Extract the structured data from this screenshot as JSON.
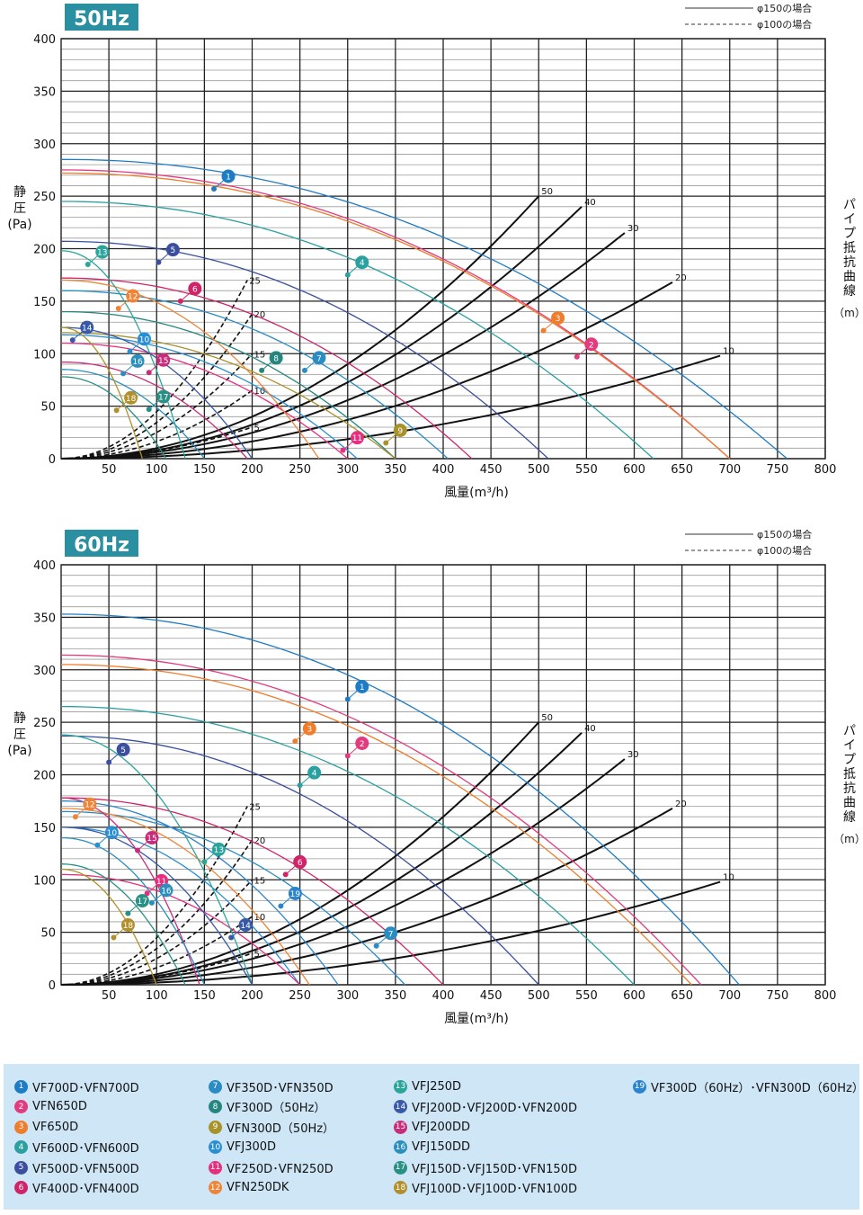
{
  "line_legend": {
    "solid": "φ150の場合",
    "dashed": "φ100の場合"
  },
  "right_axis_label": [
    "パ",
    "イ",
    "プ",
    "抵",
    "抗",
    "曲",
    "線"
  ],
  "right_axis_unit": "（m）",
  "colors": {
    "1": "#1e7cc4",
    "2": "#e23b7e",
    "3": "#ef7d2b",
    "4": "#2aa0a0",
    "5": "#3a4f9e",
    "6": "#cf2468",
    "7": "#2a8cc3",
    "8": "#24877f",
    "9": "#a8922a",
    "10": "#2a8fd2",
    "11": "#e6307f",
    "12": "#ef8436",
    "13": "#2ba59b",
    "14": "#3759a6",
    "15": "#c72d7b",
    "16": "#2a8fbd",
    "17": "#2a8f85",
    "18": "#b1902c",
    "19": "#2c84cc"
  },
  "legend": [
    [
      {
        "n": "1",
        "label": "VF700D･VFN700D"
      },
      {
        "n": "2",
        "label": "VFN650D"
      },
      {
        "n": "3",
        "label": "VF650D"
      },
      {
        "n": "4",
        "label": "VF600D･VFN600D"
      },
      {
        "n": "5",
        "label": "VF500D･VFN500D"
      },
      {
        "n": "6",
        "label": "VF400D･VFN400D"
      }
    ],
    [
      {
        "n": "7",
        "label": "VF350D･VFN350D"
      },
      {
        "n": "8",
        "label": "VF300D（50Hz）"
      },
      {
        "n": "9",
        "label": "VFN300D（50Hz）"
      },
      {
        "n": "10",
        "label": "VFJ300D"
      },
      {
        "n": "11",
        "label": "VF250D･VFN250D"
      },
      {
        "n": "12",
        "label": "VFN250DK"
      }
    ],
    [
      {
        "n": "13",
        "label": "VFJ250D"
      },
      {
        "n": "14",
        "label": "VFJ200D･VFJ200D･VFN200D"
      },
      {
        "n": "15",
        "label": "VFJ200DD"
      },
      {
        "n": "16",
        "label": "VFJ150DD"
      },
      {
        "n": "17",
        "label": "VFJ150D･VFJ150D･VFN150D"
      },
      {
        "n": "18",
        "label": "VFJ100D･VFJ100D･VFN100D"
      }
    ],
    [
      {
        "n": "19",
        "label": "VF300D（60Hz）･VFN300D（60Hz）"
      }
    ]
  ],
  "chart_data": [
    {
      "type": "line",
      "title": "50Hz",
      "xlabel": "風量(m³/h)",
      "ylabel": "静圧(Pa)",
      "xlim": [
        0,
        800
      ],
      "ylim": [
        0,
        400
      ],
      "xticks": [
        50,
        100,
        150,
        200,
        250,
        300,
        350,
        400,
        450,
        500,
        550,
        600,
        650,
        700,
        750,
        800
      ],
      "yticks": [
        0,
        50,
        100,
        150,
        200,
        250,
        300,
        350,
        400
      ],
      "grid": true,
      "fan_curves": [
        {
          "n": "1",
          "p0": 285,
          "qmax": 760,
          "marker": [
            160,
            257
          ]
        },
        {
          "n": "2",
          "p0": 275,
          "qmax": 700,
          "marker": [
            540,
            97
          ]
        },
        {
          "n": "3",
          "p0": 272,
          "qmax": 700,
          "marker": [
            505,
            122
          ]
        },
        {
          "n": "4",
          "p0": 245,
          "qmax": 620,
          "marker": [
            300,
            175
          ]
        },
        {
          "n": "5",
          "p0": 207,
          "qmax": 510,
          "marker": [
            102,
            187
          ]
        },
        {
          "n": "6",
          "p0": 172,
          "qmax": 430,
          "marker": [
            125,
            150
          ]
        },
        {
          "n": "7",
          "p0": 160,
          "qmax": 405,
          "marker": [
            255,
            84
          ]
        },
        {
          "n": "8",
          "p0": 140,
          "qmax": 350,
          "marker": [
            210,
            84
          ]
        },
        {
          "n": "9",
          "p0": 120,
          "qmax": 350,
          "marker": [
            340,
            15
          ]
        },
        {
          "n": "10",
          "p0": 118,
          "qmax": 310,
          "marker": [
            72,
            102
          ]
        },
        {
          "n": "11",
          "p0": 110,
          "qmax": 300,
          "marker": [
            295,
            8
          ]
        },
        {
          "n": "12",
          "p0": 170,
          "qmax": 270,
          "marker": [
            60,
            143
          ]
        },
        {
          "n": "13",
          "p0": 198,
          "qmax": 130,
          "marker": [
            28,
            185
          ]
        },
        {
          "n": "14",
          "p0": 125,
          "qmax": 200,
          "marker": [
            12,
            113
          ]
        },
        {
          "n": "15",
          "p0": 92,
          "qmax": 195,
          "marker": [
            92,
            82
          ]
        },
        {
          "n": "16",
          "p0": 85,
          "qmax": 150,
          "marker": [
            65,
            81
          ]
        },
        {
          "n": "17",
          "p0": 78,
          "qmax": 110,
          "marker": [
            92,
            47
          ]
        },
        {
          "n": "18",
          "p0": 125,
          "qmax": 85,
          "marker": [
            58,
            46
          ]
        }
      ],
      "resistance_curves_phi150": [
        {
          "label": "50",
          "end": [
            500,
            250
          ]
        },
        {
          "label": "40",
          "end": [
            545,
            240
          ]
        },
        {
          "label": "30",
          "end": [
            590,
            215
          ]
        },
        {
          "label": "20",
          "end": [
            640,
            168
          ]
        },
        {
          "label": "10",
          "end": [
            690,
            98
          ]
        }
      ],
      "resistance_curves_phi100": [
        {
          "label": "25",
          "end": [
            195,
            170
          ]
        },
        {
          "label": "20",
          "end": [
            200,
            138
          ]
        },
        {
          "label": "15",
          "end": [
            200,
            100
          ]
        },
        {
          "label": "10",
          "end": [
            200,
            65
          ]
        },
        {
          "label": "5",
          "end": [
            200,
            30
          ]
        }
      ]
    },
    {
      "type": "line",
      "title": "60Hz",
      "xlabel": "風量(m³/h)",
      "ylabel": "静圧(Pa)",
      "xlim": [
        0,
        800
      ],
      "ylim": [
        0,
        400
      ],
      "xticks": [
        50,
        100,
        150,
        200,
        250,
        300,
        350,
        400,
        450,
        500,
        550,
        600,
        650,
        700,
        750,
        800
      ],
      "yticks": [
        0,
        50,
        100,
        150,
        200,
        250,
        300,
        350,
        400
      ],
      "grid": true,
      "fan_curves": [
        {
          "n": "1",
          "p0": 353,
          "qmax": 710,
          "marker": [
            300,
            272
          ]
        },
        {
          "n": "2",
          "p0": 314,
          "qmax": 670,
          "marker": [
            300,
            218
          ]
        },
        {
          "n": "3",
          "p0": 305,
          "qmax": 660,
          "marker": [
            245,
            232
          ]
        },
        {
          "n": "4",
          "p0": 265,
          "qmax": 600,
          "marker": [
            250,
            190
          ]
        },
        {
          "n": "5",
          "p0": 237,
          "qmax": 500,
          "marker": [
            50,
            212
          ]
        },
        {
          "n": "6",
          "p0": 178,
          "qmax": 400,
          "marker": [
            235,
            105
          ]
        },
        {
          "n": "7",
          "p0": 165,
          "qmax": 360,
          "marker": [
            330,
            37
          ]
        },
        {
          "n": "10",
          "p0": 150,
          "qmax": 250,
          "marker": [
            38,
            133
          ]
        },
        {
          "n": "11",
          "p0": 105,
          "qmax": 250,
          "marker": [
            90,
            87
          ]
        },
        {
          "n": "12",
          "p0": 168,
          "qmax": 260,
          "marker": [
            15,
            160
          ]
        },
        {
          "n": "13",
          "p0": 238,
          "qmax": 200,
          "marker": [
            150,
            117
          ]
        },
        {
          "n": "14",
          "p0": 150,
          "qmax": 200,
          "marker": [
            178,
            45
          ]
        },
        {
          "n": "15",
          "p0": 178,
          "qmax": 145,
          "marker": [
            80,
            128
          ]
        },
        {
          "n": "16",
          "p0": 140,
          "qmax": 150,
          "marker": [
            95,
            78
          ]
        },
        {
          "n": "17",
          "p0": 115,
          "qmax": 130,
          "marker": [
            70,
            68
          ]
        },
        {
          "n": "18",
          "p0": 110,
          "qmax": 100,
          "marker": [
            55,
            45
          ]
        },
        {
          "n": "19",
          "p0": 175,
          "qmax": 290,
          "marker": [
            230,
            75
          ]
        }
      ],
      "resistance_curves_phi150": [
        {
          "label": "50",
          "end": [
            500,
            250
          ]
        },
        {
          "label": "40",
          "end": [
            545,
            240
          ]
        },
        {
          "label": "30",
          "end": [
            590,
            215
          ]
        },
        {
          "label": "20",
          "end": [
            640,
            168
          ]
        },
        {
          "label": "10",
          "end": [
            690,
            98
          ]
        }
      ],
      "resistance_curves_phi100": [
        {
          "label": "25",
          "end": [
            195,
            170
          ]
        },
        {
          "label": "20",
          "end": [
            200,
            138
          ]
        },
        {
          "label": "15",
          "end": [
            200,
            100
          ]
        },
        {
          "label": "10",
          "end": [
            200,
            65
          ]
        },
        {
          "label": "5",
          "end": [
            200,
            30
          ]
        }
      ]
    }
  ]
}
